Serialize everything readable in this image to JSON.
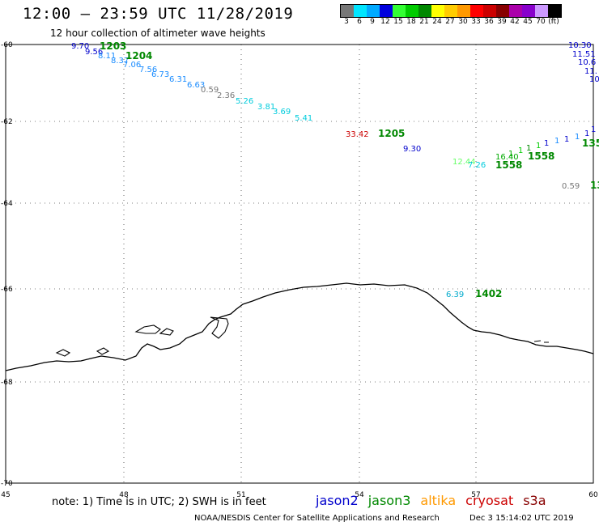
{
  "header": {
    "title": "12:00 — 23:59 UTC 11/28/2019",
    "subtitle": "12 hour collection of altimeter wave heights"
  },
  "legend": {
    "colors": [
      "#777777",
      "#00e5ff",
      "#00aaff",
      "#0000dd",
      "#33ff33",
      "#00cc00",
      "#008800",
      "#ffff00",
      "#ffcc00",
      "#ff9900",
      "#ff0000",
      "#cc0000",
      "#880000",
      "#aa00aa",
      "#8800cc",
      "#cc99ff",
      "#000000"
    ],
    "labels": [
      "3",
      "6",
      "9",
      "12",
      "15",
      "18",
      "21",
      "24",
      "27",
      "30",
      "33",
      "36",
      "39",
      "42",
      "45",
      "70",
      "(ft)"
    ]
  },
  "axes": {
    "y_labels": [
      "-60",
      "-62",
      "-64",
      "-66",
      "-68",
      "-70"
    ],
    "x_labels": [
      "45",
      "48",
      "51",
      "54",
      "57",
      "60"
    ]
  },
  "observations": [
    {
      "text": "9.70",
      "color": "#0000cc"
    },
    {
      "text": "9.56",
      "color": "#0000cc"
    },
    {
      "text": "8.11",
      "color": "#1a8cff"
    },
    {
      "text": "8.37",
      "color": "#1a8cff"
    },
    {
      "text": "7.06",
      "color": "#1a8cff"
    },
    {
      "text": "7.56",
      "color": "#1a8cff"
    },
    {
      "text": "6.73",
      "color": "#1a8cff"
    },
    {
      "text": "6.31",
      "color": "#1a8cff"
    },
    {
      "text": "6.63",
      "color": "#1a8cff"
    },
    {
      "text": "0.59",
      "color": "#777777"
    },
    {
      "text": "2.36",
      "color": "#777777"
    },
    {
      "text": "5.26",
      "color": "#00ccdd"
    },
    {
      "text": "3.81",
      "color": "#00ccdd"
    },
    {
      "text": "3.69",
      "color": "#00ccdd"
    },
    {
      "text": "5.41",
      "color": "#00ccdd"
    },
    {
      "text": "33.42",
      "color": "#cc0000"
    },
    {
      "text": "9.30",
      "color": "#0000cc"
    },
    {
      "text": "12.44",
      "color": "#66ff66"
    },
    {
      "text": "7.26",
      "color": "#00ccdd"
    },
    {
      "text": "16.40",
      "color": "#00aa00"
    },
    {
      "text": "10.30",
      "color": "#0000cc"
    },
    {
      "text": "11.51",
      "color": "#0000cc"
    },
    {
      "text": "10.6",
      "color": "#0000cc"
    },
    {
      "text": "11.",
      "color": "#0000cc"
    },
    {
      "text": "10",
      "color": "#0000cc"
    },
    {
      "text": "0.59",
      "color": "#777777"
    },
    {
      "text": "6.39",
      "color": "#00aacc"
    }
  ],
  "times": [
    {
      "text": "1203",
      "color": "#008800"
    },
    {
      "text": "1204",
      "color": "#008800"
    },
    {
      "text": "1205",
      "color": "#008800"
    },
    {
      "text": "1558",
      "color": "#008800"
    },
    {
      "text": "1558",
      "color": "#008800"
    },
    {
      "text": "135",
      "color": "#008800"
    },
    {
      "text": "13",
      "color": "#008800"
    },
    {
      "text": "1402",
      "color": "#008800"
    }
  ],
  "footer": {
    "note": "note:  1) Time is in UTC;  2) SWH is in feet",
    "satellites": [
      {
        "name": "jason2",
        "color": "#0000cc"
      },
      {
        "name": "jason3",
        "color": "#008800"
      },
      {
        "name": "altika",
        "color": "#ff9900"
      },
      {
        "name": "cryosat",
        "color": "#cc0000"
      },
      {
        "name": "s3a",
        "color": "#880000"
      }
    ],
    "credit": "NOAA/NESDIS Center for Satellite Applications and Research",
    "date": "Dec  3 15:14:02 UTC 2019"
  }
}
